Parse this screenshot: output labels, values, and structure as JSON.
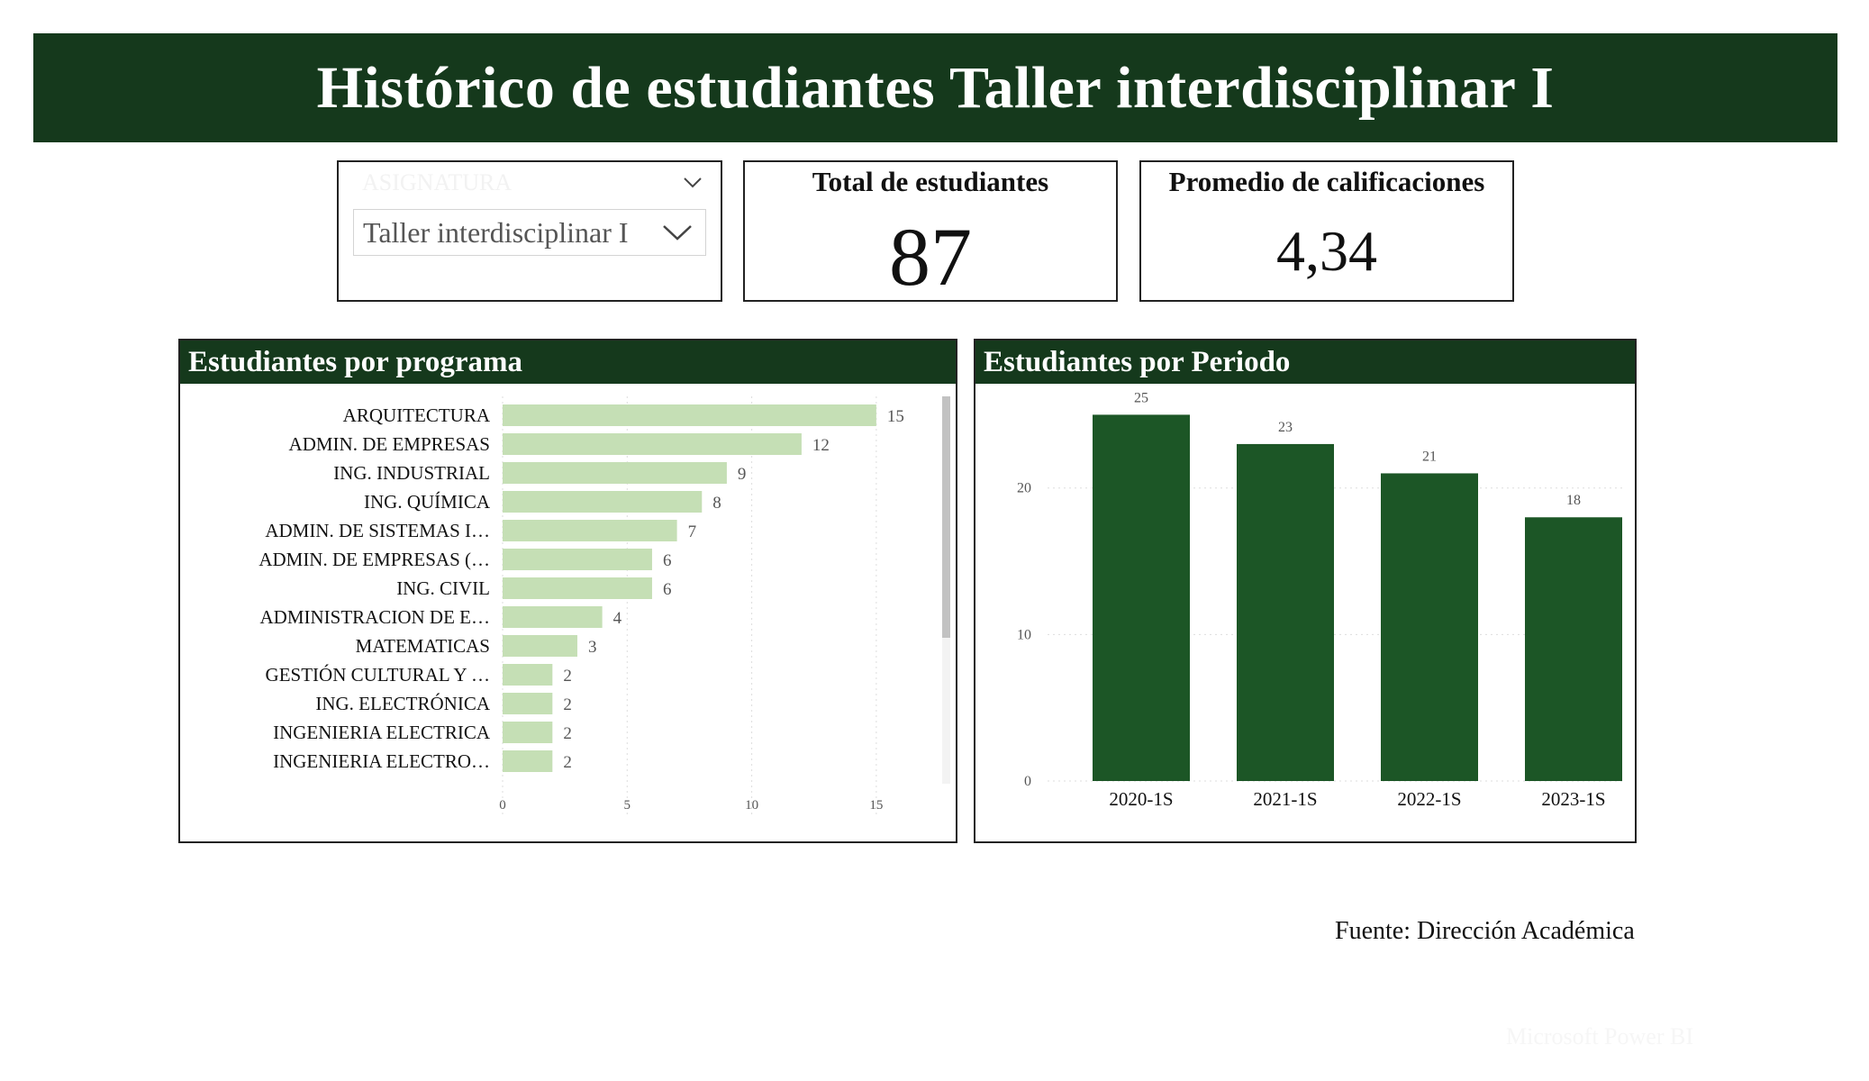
{
  "header": {
    "title": "Histórico de estudiantes Taller interdisciplinar I"
  },
  "slicer": {
    "label": "ASIGNATURA",
    "selected": "Taller interdisciplinar I",
    "icon_header": "chevron-down-icon",
    "icon_dropdown": "chevron-down-icon"
  },
  "kpis": {
    "total": {
      "label": "Total de estudiantes",
      "value": "87"
    },
    "average": {
      "label": "Promedio de calificaciones",
      "value": "4,34"
    }
  },
  "panels": {
    "programa": {
      "title": "Estudiantes por programa"
    },
    "periodo": {
      "title": "Estudiantes por Periodo"
    }
  },
  "footer": {
    "source": "Fuente: Dirección Académica",
    "watermark": "Microsoft Power BI"
  },
  "colors": {
    "banner": "#15391c",
    "bar_light": "#c5dfb5",
    "bar_dark": "#1c5626"
  },
  "chart_data": [
    {
      "type": "bar",
      "orientation": "horizontal",
      "title": "Estudiantes por programa",
      "categories": [
        "ARQUITECTURA",
        "ADMIN. DE EMPRESAS",
        "ING. INDUSTRIAL",
        "ING. QUÍMICA",
        "ADMIN. DE SISTEMAS I…",
        "ADMIN. DE EMPRESAS (…",
        "ING. CIVIL",
        "ADMINISTRACION DE E…",
        "MATEMATICAS",
        "GESTIÓN CULTURAL Y …",
        "ING. ELECTRÓNICA",
        "INGENIERIA ELECTRICA",
        "INGENIERIA ELECTRO…"
      ],
      "values": [
        15,
        12,
        9,
        8,
        7,
        6,
        6,
        4,
        3,
        2,
        2,
        2,
        2
      ],
      "xticks": [
        "0",
        "5",
        "10",
        "15"
      ],
      "xlim": [
        0,
        15.8
      ],
      "grid": true,
      "data_labels": true
    },
    {
      "type": "bar",
      "title": "Estudiantes por Periodo",
      "categories": [
        "2020-1S",
        "2021-1S",
        "2022-1S",
        "2023-1S"
      ],
      "values": [
        25,
        23,
        21,
        18
      ],
      "yticks": [
        "0",
        "10",
        "20"
      ],
      "ylim": [
        0,
        26.5
      ],
      "grid": true,
      "data_labels": true
    }
  ]
}
